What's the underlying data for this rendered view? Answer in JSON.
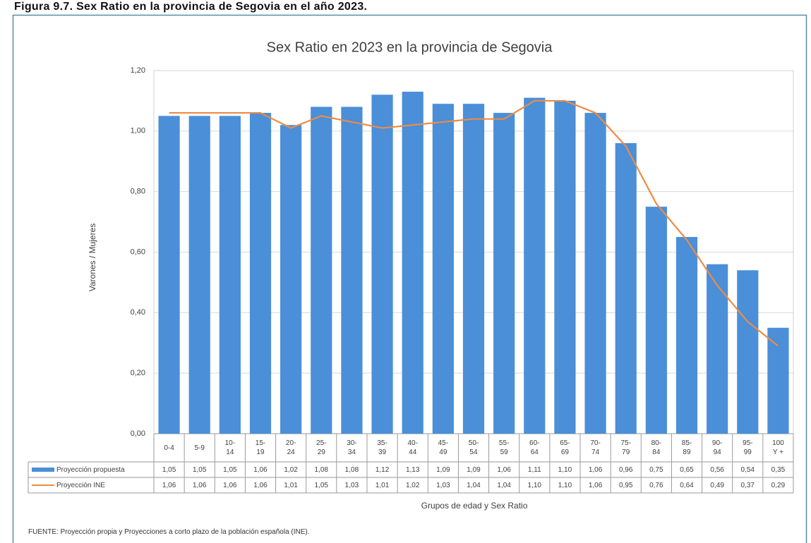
{
  "caption": "Figura 9.7. Sex Ratio en la provincia de Segovia en el año 2023.",
  "source": "FUENTE: Proyección propia y Proyecciones a corto plazo de la población española (INE).",
  "chart_data": {
    "type": "bar",
    "title": "Sex Ratio en 2023 en la provincia de Segovia",
    "y_label": "Varones / Mujeres",
    "x_label": "Grupos de edad y Sex Ratio",
    "categories": [
      "0-4",
      "5-9",
      "10-\n14",
      "15-\n19",
      "20-\n24",
      "25-\n29",
      "30-\n34",
      "35-\n39",
      "40-\n44",
      "45-\n49",
      "50-\n54",
      "55-\n59",
      "60-\n64",
      "65-\n69",
      "70-\n74",
      "75-\n79",
      "80-\n84",
      "85-\n89",
      "90-\n94",
      "95-\n99",
      "100\nY +"
    ],
    "ylim": [
      0,
      1.2
    ],
    "yticks": [
      {
        "value": 0,
        "label": "0,00"
      },
      {
        "value": 0.2,
        "label": "0,20"
      },
      {
        "value": 0.4,
        "label": "0,40"
      },
      {
        "value": 0.6,
        "label": "0,60"
      },
      {
        "value": 0.8,
        "label": "0,80"
      },
      {
        "value": 1.0,
        "label": "1,00"
      },
      {
        "value": 1.2,
        "label": "1,20"
      }
    ],
    "grid": true,
    "series": [
      {
        "name": "Proyección propuesta",
        "type": "bar",
        "color": "#4a8fd8",
        "values": [
          1.05,
          1.05,
          1.05,
          1.06,
          1.02,
          1.08,
          1.08,
          1.12,
          1.13,
          1.09,
          1.09,
          1.06,
          1.11,
          1.1,
          1.06,
          0.96,
          0.75,
          0.65,
          0.56,
          0.54,
          0.35
        ],
        "value_labels": [
          "1,05",
          "1,05",
          "1,05",
          "1,06",
          "1,02",
          "1,08",
          "1,08",
          "1,12",
          "1,13",
          "1,09",
          "1,09",
          "1,06",
          "1,11",
          "1,10",
          "1,06",
          "0,96",
          "0,75",
          "0,65",
          "0,56",
          "0,54",
          "0,35"
        ]
      },
      {
        "name": "Proyección INE",
        "type": "line",
        "color": "#ed8b45",
        "values": [
          1.06,
          1.06,
          1.06,
          1.06,
          1.01,
          1.05,
          1.03,
          1.01,
          1.02,
          1.03,
          1.04,
          1.04,
          1.1,
          1.1,
          1.06,
          0.95,
          0.76,
          0.64,
          0.49,
          0.37,
          0.29
        ],
        "value_labels": [
          "1,06",
          "1,06",
          "1,06",
          "1,06",
          "1,01",
          "1,05",
          "1,03",
          "1,01",
          "1,02",
          "1,03",
          "1,04",
          "1,04",
          "1,10",
          "1,10",
          "1,06",
          "0,95",
          "0,76",
          "0,64",
          "0,49",
          "0,37",
          "0,29"
        ]
      }
    ]
  }
}
